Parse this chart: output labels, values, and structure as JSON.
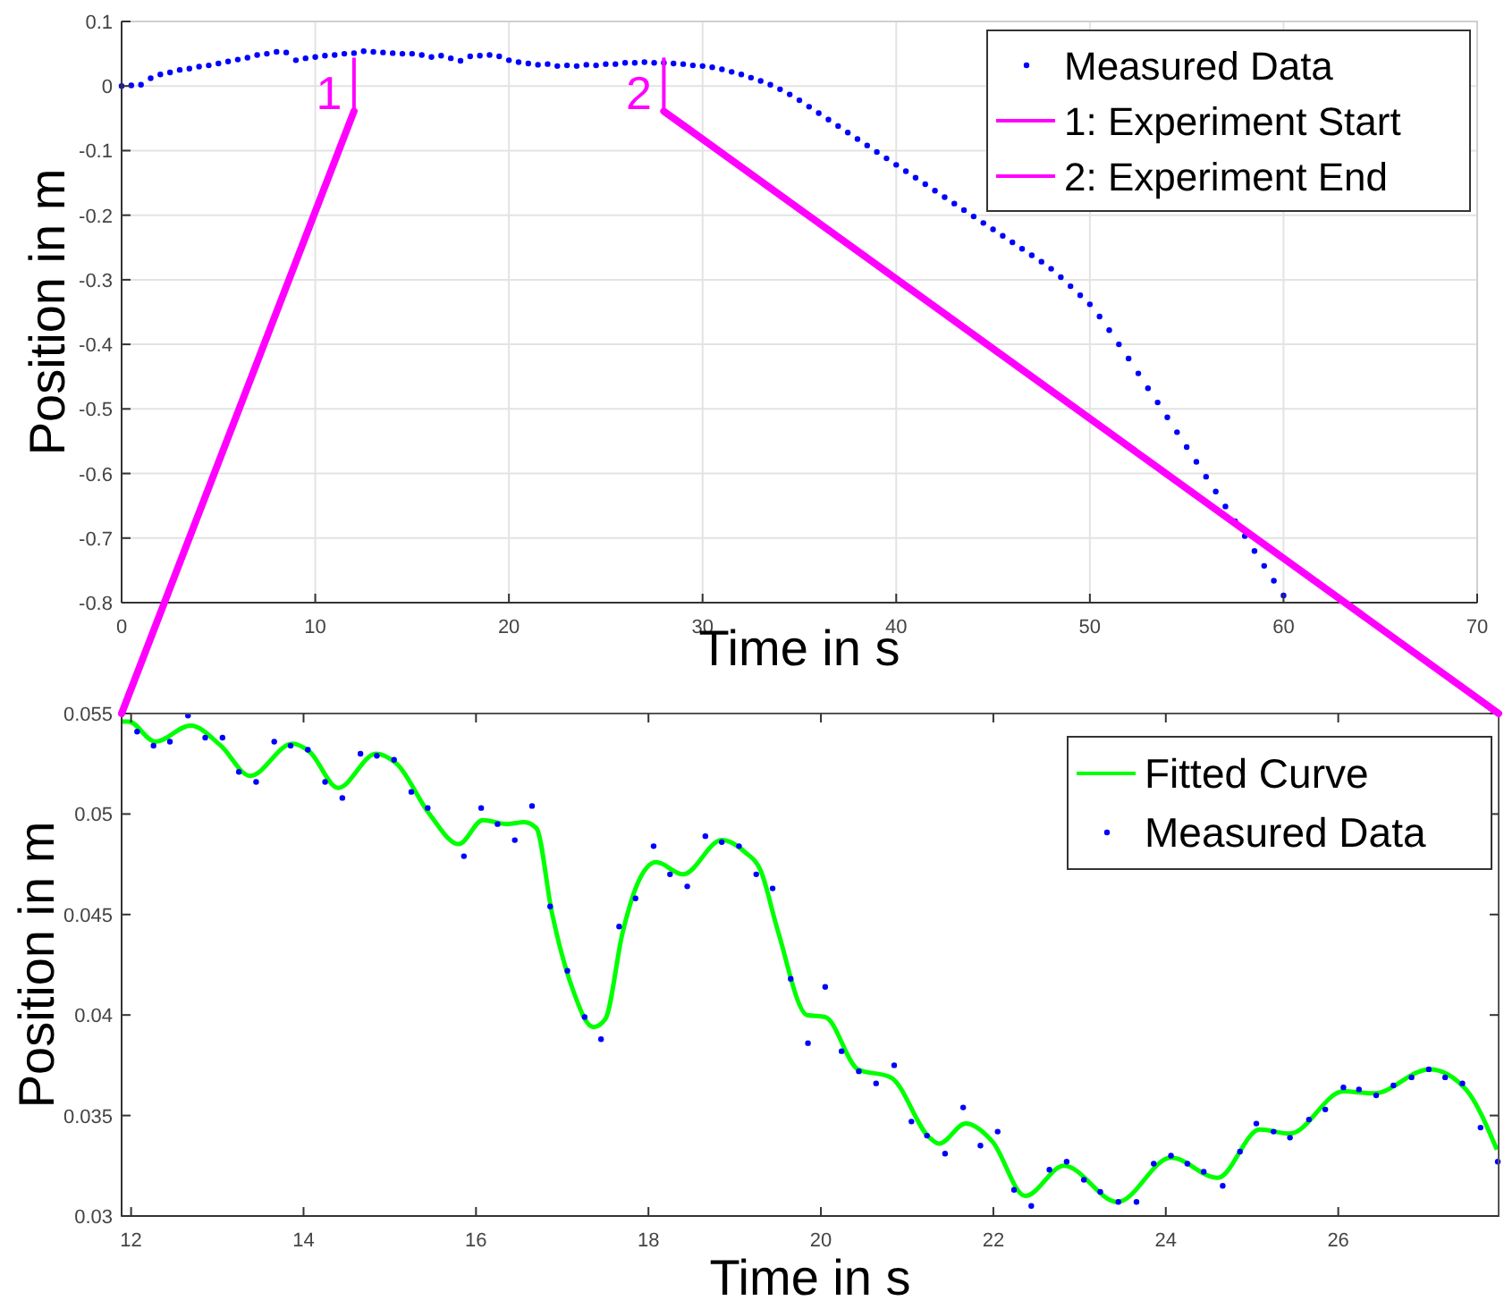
{
  "chart_data": [
    {
      "type": "scatter",
      "xlabel": "Time in s",
      "ylabel": "Position in m",
      "xlim": [
        0,
        70
      ],
      "xticks": [
        0,
        10,
        20,
        30,
        40,
        50,
        60,
        70
      ],
      "ylim": [
        -0.8,
        0.1
      ],
      "yticks": [
        0.1,
        0,
        -0.1,
        -0.2,
        -0.3,
        -0.4,
        -0.5,
        -0.6,
        -0.7,
        -0.8
      ],
      "grid": true,
      "legend": "top right",
      "series": [
        {
          "name": "Measured Data",
          "type": "scatter",
          "marker": "circle",
          "color": "#0000ff",
          "x": [
            0,
            0.5,
            1,
            1.5,
            2,
            2.5,
            3,
            3.5,
            4,
            4.5,
            5,
            5.5,
            6,
            6.5,
            7,
            7.5,
            8,
            8.5,
            9,
            9.5,
            10,
            10.5,
            11,
            11.5,
            12,
            12.5,
            13,
            13.5,
            14,
            14.5,
            15,
            15.5,
            16,
            16.5,
            17,
            17.5,
            18,
            18.5,
            19,
            19.5,
            20,
            20.5,
            21,
            21.5,
            22,
            22.5,
            23,
            23.5,
            24,
            24.5,
            25,
            25.5,
            26,
            26.5,
            27,
            27.5,
            28,
            28.5,
            29,
            29.5,
            30,
            30.5,
            31,
            31.5,
            32,
            32.5,
            33,
            33.5,
            34,
            34.5,
            35,
            35.5,
            36,
            36.5,
            37,
            37.5,
            38,
            38.5,
            39,
            39.5,
            40,
            40.5,
            41,
            41.5,
            42,
            42.5,
            43,
            43.5,
            44,
            44.5,
            45,
            45.5,
            46,
            46.5,
            47,
            47.5,
            48,
            48.5,
            49,
            49.5,
            50,
            50.5,
            51,
            51.5,
            52,
            52.5,
            53,
            53.5,
            54,
            54.5,
            55,
            55.5,
            56,
            56.5,
            57,
            57.5,
            58,
            58.5,
            59,
            59.5,
            60
          ],
          "values": [
            0,
            0.001,
            0.002,
            0.012,
            0.018,
            0.021,
            0.025,
            0.027,
            0.03,
            0.032,
            0.035,
            0.038,
            0.041,
            0.044,
            0.048,
            0.05,
            0.053,
            0.052,
            0.04,
            0.043,
            0.045,
            0.047,
            0.048,
            0.05,
            0.051,
            0.054,
            0.053,
            0.052,
            0.051,
            0.05,
            0.05,
            0.048,
            0.045,
            0.047,
            0.043,
            0.039,
            0.046,
            0.047,
            0.048,
            0.046,
            0.04,
            0.037,
            0.035,
            0.033,
            0.034,
            0.031,
            0.032,
            0.031,
            0.033,
            0.032,
            0.034,
            0.034,
            0.036,
            0.036,
            0.037,
            0.036,
            0.036,
            0.035,
            0.034,
            0.032,
            0.031,
            0.029,
            0.026,
            0.022,
            0.018,
            0.013,
            0.008,
            0.002,
            -0.005,
            -0.013,
            -0.022,
            -0.032,
            -0.042,
            -0.052,
            -0.062,
            -0.072,
            -0.082,
            -0.092,
            -0.102,
            -0.112,
            -0.122,
            -0.132,
            -0.142,
            -0.152,
            -0.162,
            -0.172,
            -0.182,
            -0.192,
            -0.202,
            -0.212,
            -0.222,
            -0.232,
            -0.242,
            -0.252,
            -0.262,
            -0.272,
            -0.283,
            -0.296,
            -0.31,
            -0.324,
            -0.338,
            -0.357,
            -0.378,
            -0.4,
            -0.422,
            -0.445,
            -0.468,
            -0.49,
            -0.513,
            -0.536,
            -0.559,
            -0.582,
            -0.605,
            -0.628,
            -0.651,
            -0.674,
            -0.697,
            -0.72,
            -0.743,
            -0.766,
            -0.789
          ]
        },
        {
          "name": "1: Experiment Start",
          "type": "line",
          "color": "#ff00ff",
          "x": [
            12,
            12
          ],
          "values": [
            0.044,
            -0.039
          ]
        },
        {
          "name": "2: Experiment End",
          "type": "line",
          "color": "#ff00ff",
          "x": [
            28,
            28
          ],
          "values": [
            0.044,
            -0.039
          ]
        }
      ],
      "annotations": [
        "1",
        "2"
      ]
    },
    {
      "type": "scatter",
      "xlabel": "Time in s",
      "ylabel": "Position in m",
      "xlim": [
        11.89,
        27.86
      ],
      "xticks": [
        12,
        14,
        16,
        18,
        20,
        22,
        24,
        26
      ],
      "ylim": [
        0.03,
        0.055
      ],
      "yticks": [
        0.03,
        0.035,
        0.04,
        0.045,
        0.05,
        0.055
      ],
      "grid": false,
      "legend": "top right",
      "series": [
        {
          "name": "Fitted Curve",
          "type": "line",
          "color": "#00ff00",
          "x": [
            11.9,
            11.97,
            12.28,
            12.69,
            13.04,
            13.38,
            13.87,
            14.07,
            14.4,
            14.84,
            15.08,
            15.46,
            15.8,
            16.08,
            16.36,
            16.56,
            16.7,
            16.88,
            17.12,
            17.36,
            17.5,
            17.7,
            17.88,
            18.09,
            18.4,
            18.85,
            19.12,
            19.3,
            19.5,
            19.84,
            20.05,
            20.43,
            20.81,
            21.26,
            21.37,
            21.68,
            21.99,
            22.37,
            22.82,
            23.44,
            24.06,
            24.6,
            25.09,
            25.44,
            26.06,
            26.41,
            27.06,
            27.48,
            27.84
          ],
          "values": [
            0.0546,
            0.0546,
            0.0536,
            0.0544,
            0.0534,
            0.0519,
            0.0535,
            0.0531,
            0.0513,
            0.053,
            0.0525,
            0.05,
            0.0485,
            0.0497,
            0.0495,
            0.0496,
            0.0493,
            0.0451,
            0.0413,
            0.0394,
            0.0398,
            0.0441,
            0.0466,
            0.0476,
            0.047,
            0.0487,
            0.0481,
            0.0472,
            0.0442,
            0.04,
            0.0399,
            0.0373,
            0.0369,
            0.0339,
            0.0336,
            0.0346,
            0.0337,
            0.031,
            0.0325,
            0.0307,
            0.0329,
            0.0319,
            0.0343,
            0.0341,
            0.0362,
            0.0361,
            0.0373,
            0.0363,
            0.0333
          ]
        },
        {
          "name": "Measured Data",
          "type": "scatter",
          "marker": "circle",
          "color": "#0000ff",
          "x": [
            12.07,
            12.26,
            12.45,
            12.66,
            12.86,
            13.06,
            13.25,
            13.45,
            13.66,
            13.85,
            14.05,
            14.25,
            14.45,
            14.66,
            14.85,
            15.05,
            15.25,
            15.44,
            15.86,
            16.06,
            16.25,
            16.45,
            16.65,
            16.86,
            17.06,
            17.26,
            17.45,
            17.66,
            17.85,
            18.06,
            18.25,
            18.45,
            18.66,
            18.85,
            19.05,
            19.25,
            19.44,
            19.65,
            19.85,
            20.05,
            20.24,
            20.44,
            20.64,
            20.85,
            21.05,
            21.23,
            21.44,
            21.65,
            21.85,
            22.05,
            22.24,
            22.44,
            22.65,
            22.85,
            23.05,
            23.24,
            23.45,
            23.66,
            23.86,
            24.06,
            24.25,
            24.44,
            24.66,
            24.86,
            25.05,
            25.25,
            25.44,
            25.66,
            25.85,
            26.06,
            26.24,
            26.44,
            26.64,
            26.85,
            27.05,
            27.24,
            27.44,
            27.65,
            27.85
          ],
          "values": [
            0.0541,
            0.0534,
            0.0536,
            0.0549,
            0.0538,
            0.0538,
            0.0521,
            0.0516,
            0.0536,
            0.0534,
            0.0532,
            0.0516,
            0.0508,
            0.053,
            0.0529,
            0.0527,
            0.0511,
            0.0503,
            0.0479,
            0.0503,
            0.0495,
            0.0487,
            0.0504,
            0.0454,
            0.0422,
            0.0399,
            0.0388,
            0.0444,
            0.0458,
            0.0484,
            0.047,
            0.0464,
            0.0489,
            0.0486,
            0.0484,
            0.047,
            0.0463,
            0.0418,
            0.0386,
            0.0414,
            0.0382,
            0.0372,
            0.0366,
            0.0375,
            0.0347,
            0.034,
            0.0331,
            0.0354,
            0.0335,
            0.0342,
            0.0313,
            0.0305,
            0.0323,
            0.0327,
            0.0318,
            0.0312,
            0.0307,
            0.0307,
            0.0326,
            0.033,
            0.0326,
            0.0322,
            0.0315,
            0.0332,
            0.0346,
            0.0342,
            0.0339,
            0.0348,
            0.0353,
            0.0364,
            0.0363,
            0.036,
            0.0365,
            0.0369,
            0.0373,
            0.0369,
            0.0366,
            0.0344,
            0.0327
          ]
        }
      ]
    }
  ]
}
